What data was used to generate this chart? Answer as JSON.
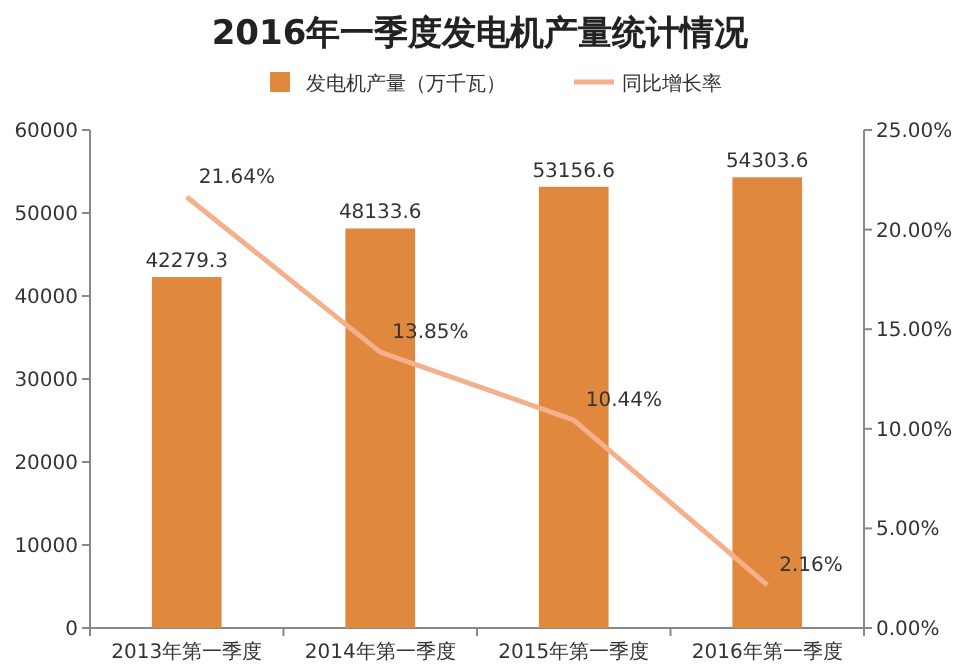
{
  "chart_data": {
    "type": "bar",
    "title": "2016年一季度发电机产量统计情况",
    "categories": [
      "2013年第一季度",
      "2014年第一季度",
      "2015年第一季度",
      "2016年第一季度"
    ],
    "series": [
      {
        "name": "发电机产量（万千瓦）",
        "color": "#e0883e",
        "values": [
          42279.3,
          48133.6,
          53156.6,
          54303.6
        ],
        "value_labels": [
          "42279.3",
          "48133.6",
          "53156.6",
          "54303.6"
        ]
      },
      {
        "name": "同比增长率",
        "type": "line",
        "axis": "y2",
        "color": "#f4b08a",
        "values": [
          21.64,
          13.85,
          10.44,
          2.16
        ],
        "value_labels": [
          "21.64%",
          "13.85%",
          "10.44%",
          "2.16%"
        ]
      }
    ],
    "ylim": [
      0,
      60000
    ],
    "yticks": [
      0,
      10000,
      20000,
      30000,
      40000,
      50000,
      60000
    ],
    "y2lim": [
      0,
      25
    ],
    "y2ticks": [
      {
        "value": 0,
        "label": "0.00%"
      },
      {
        "value": 5,
        "label": "5.00%"
      },
      {
        "value": 10,
        "label": "10.00%"
      },
      {
        "value": 15,
        "label": "15.00%"
      },
      {
        "value": 20,
        "label": "20.00%"
      },
      {
        "value": 25,
        "label": "25.00%"
      }
    ],
    "legend": "top"
  }
}
